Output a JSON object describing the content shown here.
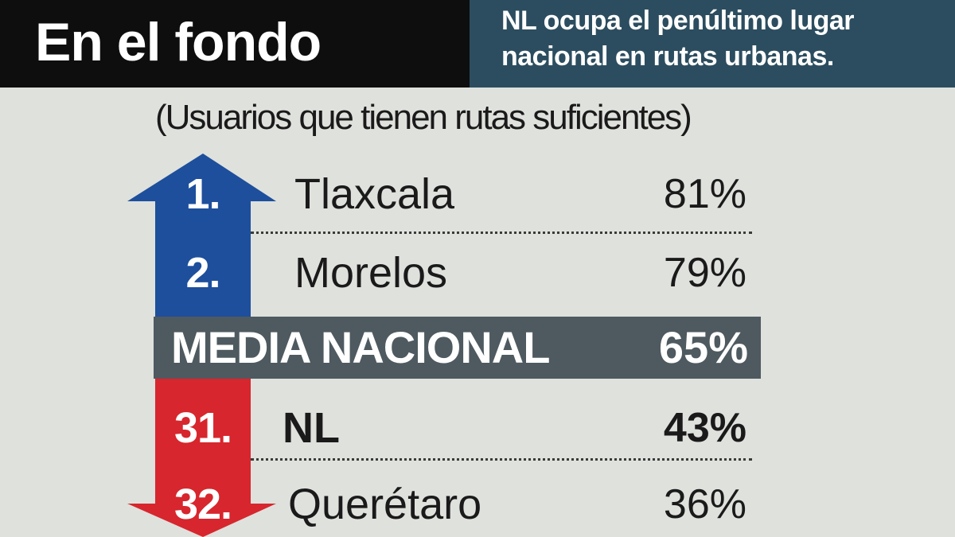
{
  "header": {
    "title": "En el fondo",
    "subtitle_line1": "NL ocupa el penúltimo lugar",
    "subtitle_line2": "nacional en rutas urbanas."
  },
  "colors": {
    "header_bg": "#0e0e0e",
    "subtitle_bg": "#2c4d5f",
    "up_arrow": "#1d4f9c",
    "down_arrow": "#d7262d",
    "average_bar": "#4e5a60",
    "background": "#dfe1dd"
  },
  "chart_data": {
    "type": "table",
    "title": "(Usuarios que tienen rutas suficientes)",
    "unit": "%",
    "rows": [
      {
        "rank": "1.",
        "state": "Tlaxcala",
        "value": 81,
        "label": "81%",
        "group": "top"
      },
      {
        "rank": "2.",
        "state": "Morelos",
        "value": 79,
        "label": "79%",
        "group": "top"
      },
      {
        "rank": "31.",
        "state": "NL",
        "value": 43,
        "label": "43%",
        "group": "bottom",
        "highlight": true
      },
      {
        "rank": "32.",
        "state": "Querétaro",
        "value": 36,
        "label": "36%",
        "group": "bottom"
      }
    ],
    "average": {
      "label": "MEDIA NACIONAL",
      "value": 65,
      "value_label": "65%"
    }
  }
}
